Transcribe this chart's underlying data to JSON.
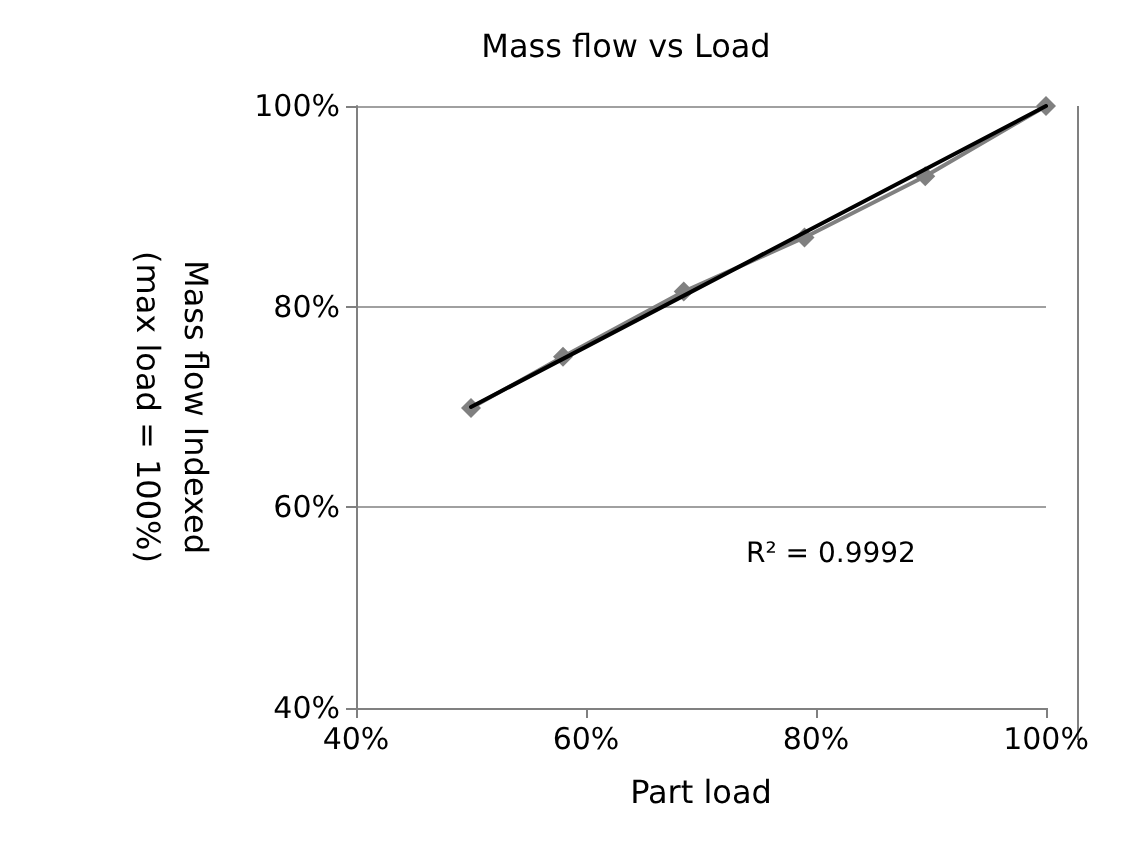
{
  "chart_data": {
    "type": "line",
    "title": "Mass flow vs Load",
    "xlabel": "Part load",
    "ylabel": "Mass flow Indexed\n(max load = 100%)",
    "x": [
      50,
      58,
      68.5,
      79,
      89.5,
      100
    ],
    "series": [
      {
        "color": "#808080",
        "values": [
          69.9,
          75,
          81.5,
          86.9,
          93,
          100
        ],
        "marker": "diamond"
      },
      {
        "color": "#000000",
        "x": [
          50,
          100
        ],
        "values": [
          70,
          100
        ],
        "marker": "none"
      }
    ],
    "xlim": [
      40,
      100
    ],
    "xticks": [
      {
        "value": 40,
        "label": "40%"
      },
      {
        "value": 60,
        "label": "60%"
      },
      {
        "value": 80,
        "label": "80%"
      },
      {
        "value": 100,
        "label": "100%"
      }
    ],
    "ylim": [
      40,
      100
    ],
    "yticks": [
      {
        "value": 40,
        "label": "40%"
      },
      {
        "value": 60,
        "label": "60%"
      },
      {
        "value": 80,
        "label": "80%"
      },
      {
        "value": 100,
        "label": "100%"
      }
    ],
    "grid": "y",
    "line_style": "solid",
    "annotations": [
      "R² = 0.9992"
    ]
  }
}
